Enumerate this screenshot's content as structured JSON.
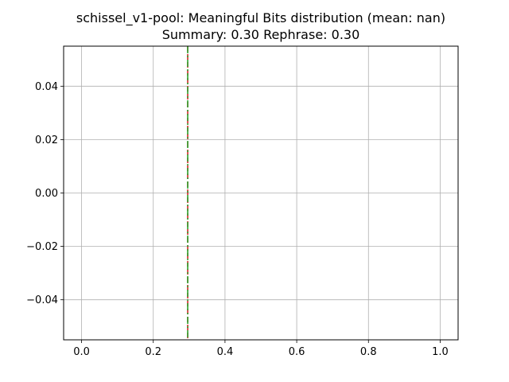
{
  "chart_data": {
    "type": "line",
    "title": "schissel_v1-pool: Meaningful Bits distribution (mean: nan)",
    "subtitle": "Summary: 0.30 Rephrase: 0.30",
    "xlabel": "",
    "ylabel": "",
    "xlim": [
      -0.05,
      1.05
    ],
    "ylim": [
      -0.055,
      0.055
    ],
    "grid": true,
    "x_ticks": [
      0.0,
      0.2,
      0.4,
      0.6,
      0.8,
      1.0
    ],
    "x_tick_labels": [
      "0.0",
      "0.2",
      "0.4",
      "0.6",
      "0.8",
      "1.0"
    ],
    "y_ticks": [
      0.04,
      0.02,
      0.0,
      -0.02,
      -0.04
    ],
    "y_tick_labels": [
      "0.04",
      "0.02",
      "0.00",
      "−0.02",
      "−0.04"
    ],
    "vlines": [
      {
        "name": "Summary",
        "x": 0.296,
        "color": "#d62728",
        "style": "dashed"
      },
      {
        "name": "Rephrase",
        "x": 0.296,
        "color": "#2ca02c",
        "style": "dashdot"
      }
    ],
    "colors": {
      "grid": "#b0b0b0",
      "axes": "#000000"
    }
  }
}
